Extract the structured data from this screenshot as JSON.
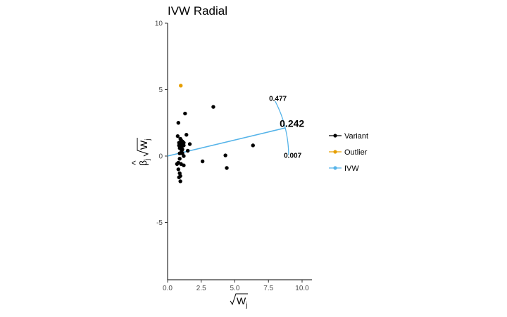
{
  "chart_data": {
    "type": "scatter",
    "title": "IVW Radial",
    "xlabel": "√W_j",
    "ylabel": "β̂_j √W_j",
    "xlim": [
      0,
      10.8
    ],
    "ylim": [
      -9.3,
      10
    ],
    "x_ticks": [
      0,
      2.5,
      5,
      7.5,
      10
    ],
    "x_tick_labels": [
      "0.0",
      "2.5",
      "5.0",
      "7.5",
      "10.0"
    ],
    "y_ticks": [
      -5,
      0,
      5,
      10
    ],
    "y_tick_labels": [
      "-5",
      "0",
      "5",
      "10"
    ],
    "grid": false,
    "legend_position": "right",
    "series": [
      {
        "name": "Variant",
        "color": "#000000",
        "points": [
          [
            0.75,
            1.5
          ],
          [
            0.8,
            2.5
          ],
          [
            0.85,
            1.0
          ],
          [
            0.9,
            0.6
          ],
          [
            0.95,
            1.3
          ],
          [
            1.0,
            0.9
          ],
          [
            1.05,
            0.4
          ],
          [
            1.1,
            0.2
          ],
          [
            1.2,
            0.0
          ],
          [
            0.8,
            -0.5
          ],
          [
            0.9,
            -0.2
          ],
          [
            1.0,
            -0.6
          ],
          [
            0.8,
            -1.0
          ],
          [
            0.85,
            -1.6
          ],
          [
            0.95,
            -1.5
          ],
          [
            0.95,
            -1.9
          ],
          [
            0.9,
            -1.3
          ],
          [
            1.2,
            -0.7
          ],
          [
            1.0,
            1.2
          ],
          [
            1.1,
            1.1
          ],
          [
            1.2,
            0.8
          ],
          [
            1.3,
            3.2
          ],
          [
            1.4,
            1.6
          ],
          [
            1.5,
            0.4
          ],
          [
            1.1,
            0.5
          ],
          [
            1.2,
            1.0
          ],
          [
            0.85,
            0.8
          ],
          [
            0.9,
            0.2
          ],
          [
            1.65,
            0.9
          ],
          [
            0.7,
            -0.6
          ],
          [
            2.6,
            -0.4
          ],
          [
            3.4,
            3.7
          ],
          [
            4.3,
            0.05
          ],
          [
            4.4,
            -0.9
          ],
          [
            6.35,
            0.8
          ],
          [
            1.05,
            0.7
          ]
        ]
      },
      {
        "name": "Outlier",
        "color": "#E69F00",
        "points": [
          [
            0.98,
            5.3
          ]
        ]
      },
      {
        "name": "IVW",
        "color": "#56B4E9",
        "line": {
          "intercept": 0,
          "slope": 0.242,
          "x_end": 8.75
        },
        "arc": {
          "radius": 9.0,
          "angle_from": 0.007,
          "angle_to": 0.477
        }
      }
    ],
    "annotations": [
      {
        "text": "0.477",
        "x": 8.2,
        "y": 4.15,
        "size": "small"
      },
      {
        "text": "0.242",
        "x": 9.25,
        "y": 2.2,
        "size": "big"
      },
      {
        "text": "0.007",
        "x": 9.3,
        "y": -0.12,
        "size": "small"
      }
    ]
  }
}
